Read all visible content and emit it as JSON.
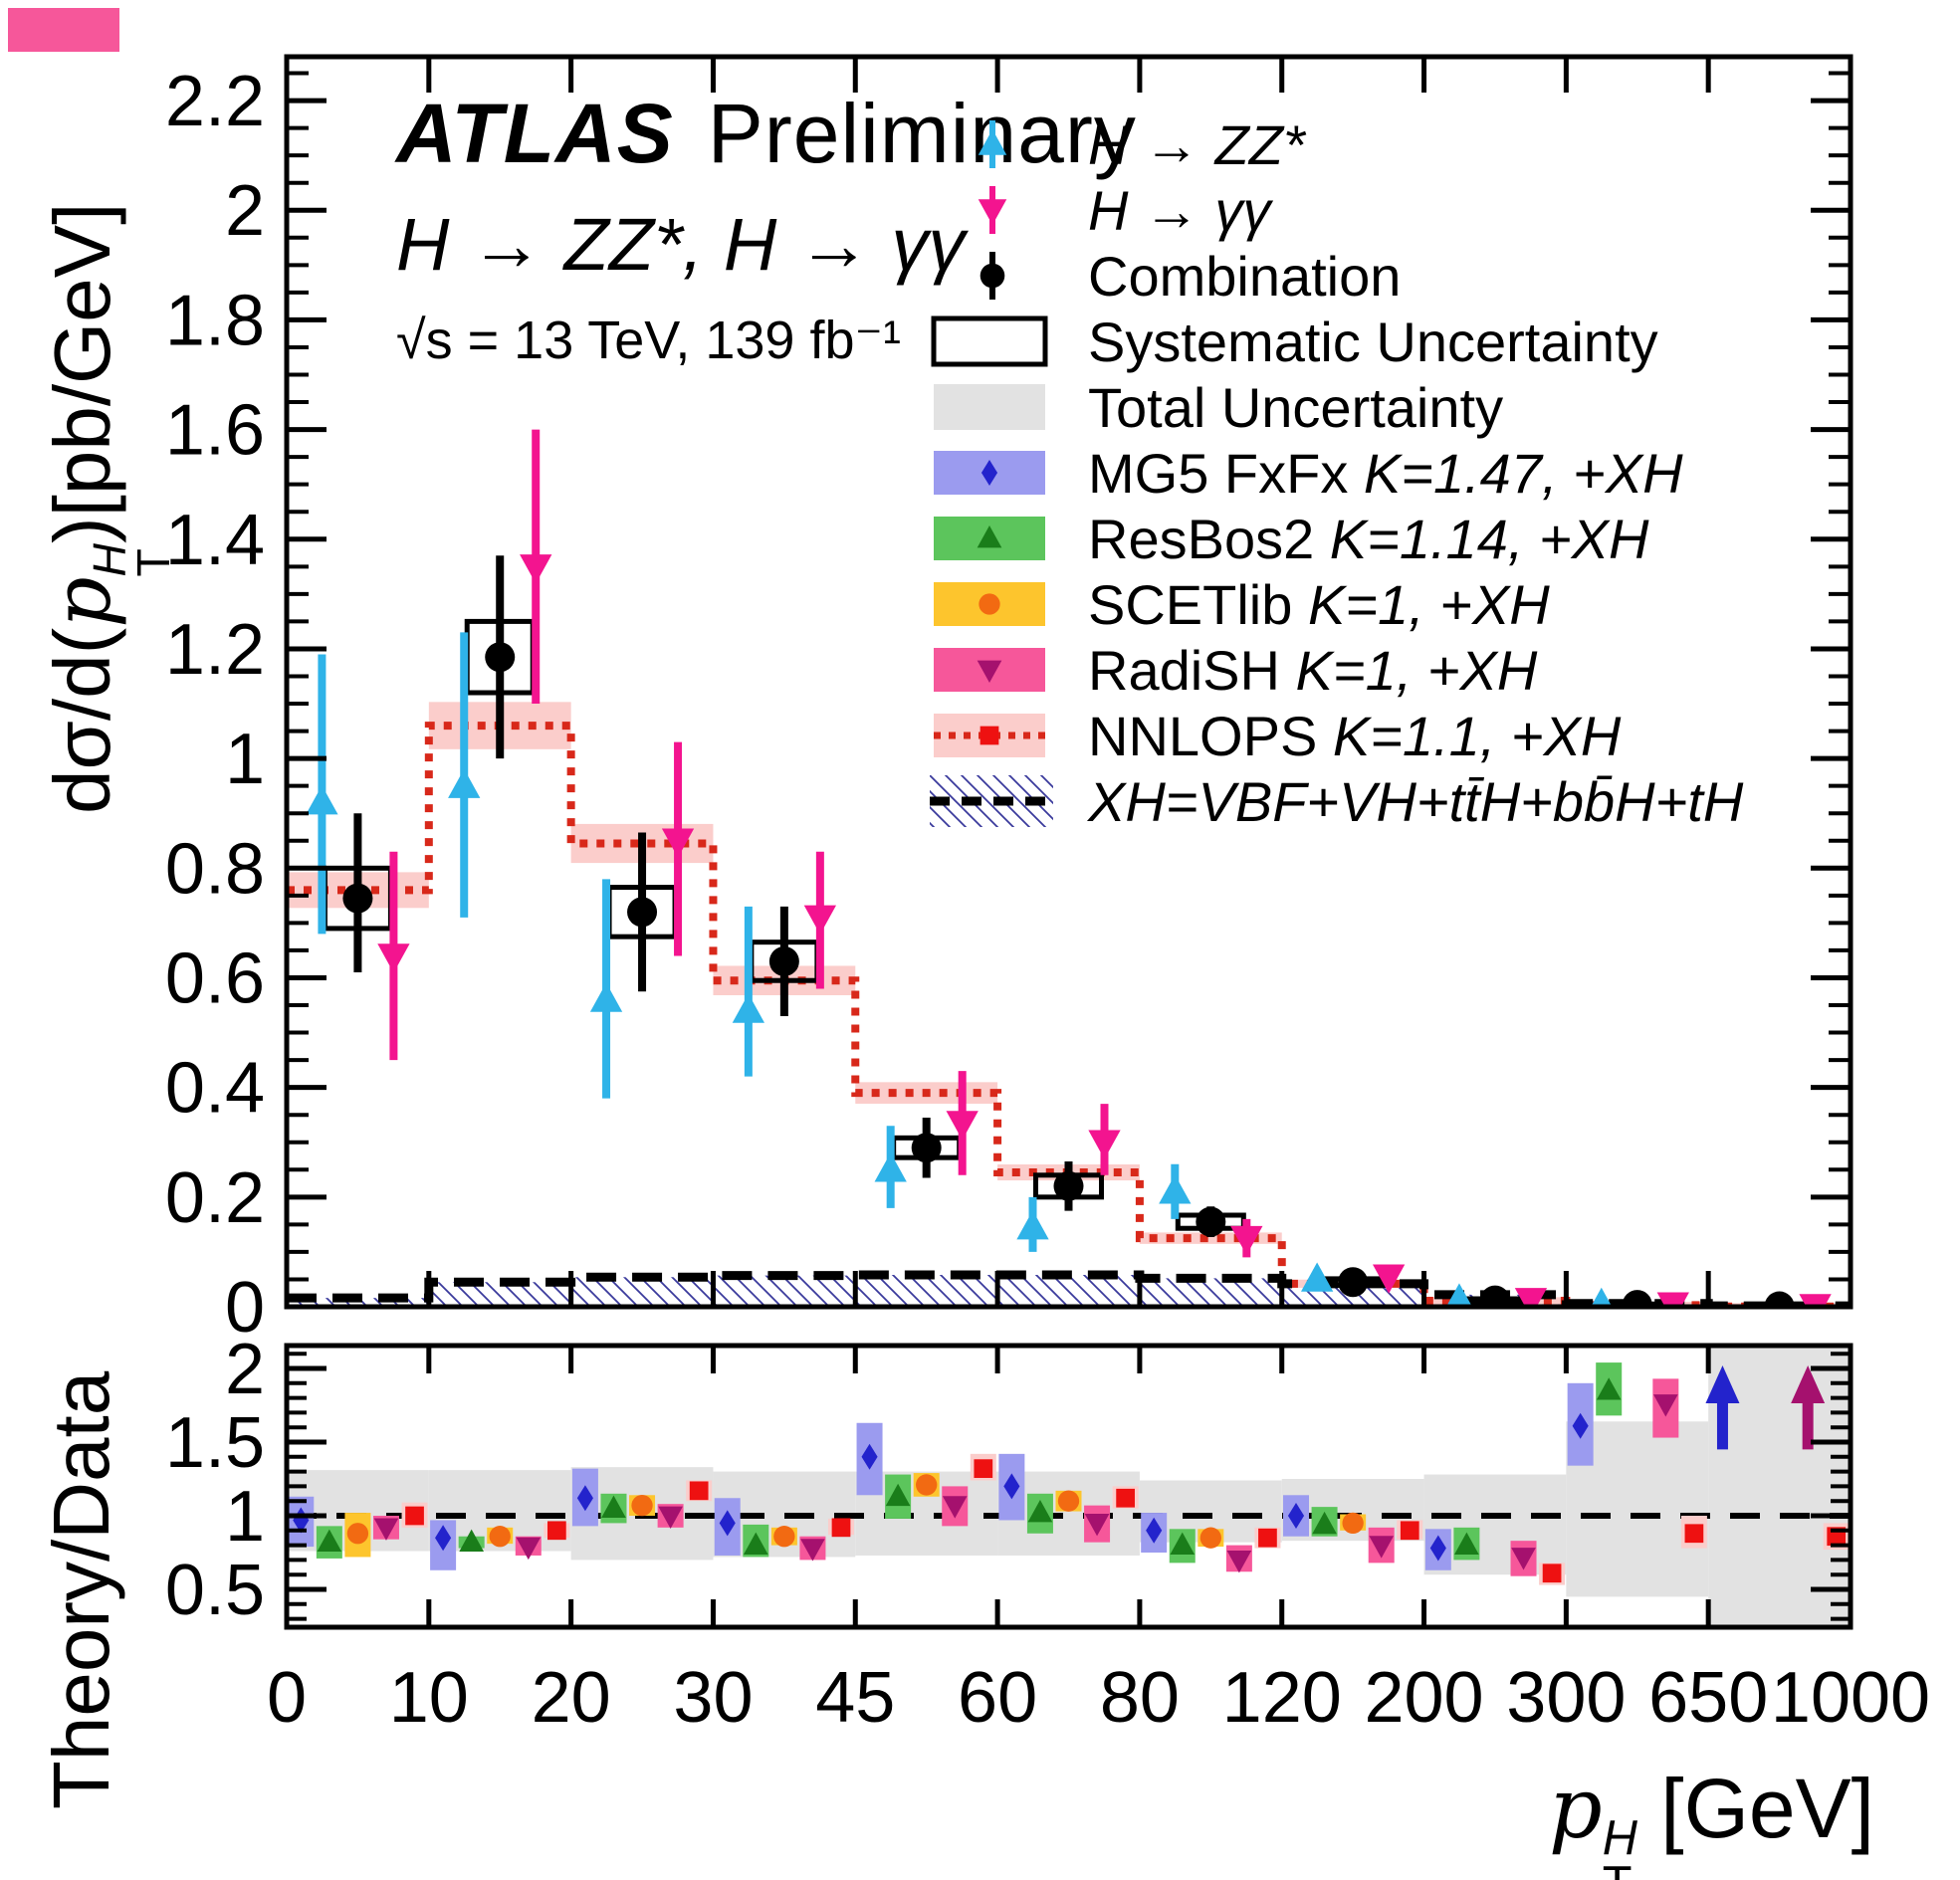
{
  "header": {
    "experiment": "ATLAS",
    "status": "Preliminary",
    "process": "H → ZZ*, H → γγ",
    "energy_lumi": "√s = 13 TeV, 139 fb⁻¹"
  },
  "axis_titles": {
    "main_y_prefix": "dσ/d(",
    "p": "p",
    "sup": "H",
    "sub": "T",
    "main_y_suffix": ")[pb/GeV]",
    "ratio_y": "Theory/Data",
    "x_suffix": " [GeV]"
  },
  "colors": {
    "h_zz": "#2FB3E8",
    "h_gg": "#F3148F",
    "combination": "#000000",
    "total_band": "#E2E2E2",
    "mg5_band": "#9B9BEF",
    "mg5_marker": "#2323CC",
    "resbos2_band": "#5CC55C",
    "resbos2_marker": "#1A7D1A",
    "scetlib_band": "#FDC52D",
    "scetlib_marker": "#F26A12",
    "radish_band": "#F6579A",
    "radish_marker": "#A5116E",
    "nnlops_band": "#FBCDCB",
    "nnlops_line": "#D8281A",
    "nnlops_marker": "#EE1111",
    "hatch_line": "#3A3A9C",
    "xh_line": "#000000"
  },
  "legend": [
    {
      "id": "h-zz",
      "type": "point",
      "marker": "triangle-up",
      "color_key": "h_zz",
      "label": "",
      "label_math": "H → ZZ*"
    },
    {
      "id": "h-gg",
      "type": "point",
      "marker": "triangle-down",
      "color_key": "h_gg",
      "label": "",
      "label_math": "H → γγ"
    },
    {
      "id": "comb",
      "type": "point",
      "marker": "circle",
      "color_key": "combination",
      "label": "Combination",
      "label_math": ""
    },
    {
      "id": "syst",
      "type": "box-open",
      "marker": "",
      "color_key": "combination",
      "label": "Systematic Uncertainty",
      "label_math": ""
    },
    {
      "id": "total",
      "type": "box-fill",
      "marker": "",
      "color_key": "total_band",
      "label": "Total Uncertainty",
      "label_math": ""
    },
    {
      "id": "mg5",
      "type": "band",
      "marker": "diamond",
      "color_key": "mg5_band",
      "marker_color_key": "mg5_marker",
      "label": "MG5 FxFx ",
      "label_math": "K=1.47, +XH"
    },
    {
      "id": "resbos2",
      "type": "band",
      "marker": "triangle-up",
      "color_key": "resbos2_band",
      "marker_color_key": "resbos2_marker",
      "label": "ResBos2 ",
      "label_math": "K=1.14, +XH"
    },
    {
      "id": "scetlib",
      "type": "band",
      "marker": "circle",
      "color_key": "scetlib_band",
      "marker_color_key": "scetlib_marker",
      "label": "SCETlib ",
      "label_math": "K=1, +XH"
    },
    {
      "id": "radish",
      "type": "band",
      "marker": "triangle-down",
      "color_key": "radish_band",
      "marker_color_key": "radish_marker",
      "label": "RadiSH ",
      "label_math": "K=1, +XH"
    },
    {
      "id": "nnlops",
      "type": "band-dotted",
      "marker": "square",
      "color_key": "nnlops_band",
      "marker_color_key": "nnlops_marker",
      "label": "NNLOPS ",
      "label_math": "K=1.1, +XH"
    },
    {
      "id": "xh",
      "type": "band-hatch",
      "marker": "",
      "color_key": "hatch_line",
      "label": "",
      "label_math": "XH=VBF+VH+tt̄H+bb̄H+tH"
    }
  ],
  "chart_data": {
    "type": "errorbar-step-with-ratio",
    "title": "ATLAS Preliminary H → ZZ*, H → γγ, √s = 13 TeV, 139 fb⁻¹",
    "xlabel": "pT^H [GeV]",
    "x_bin_edges_gev": [
      0,
      10,
      20,
      30,
      45,
      60,
      80,
      120,
      200,
      300,
      650,
      1000
    ],
    "main": {
      "ylabel": "dσ/d(pT^H) [pb/GeV]",
      "ylim": [
        0,
        2.28
      ],
      "ytick_step": 0.2,
      "ytick_labels": [
        "0",
        "0.2",
        "0.4",
        "0.6",
        "0.8",
        "1",
        "1.2",
        "1.4",
        "1.6",
        "1.8",
        "2",
        "2.2"
      ],
      "series": {
        "h_zz": {
          "label": "H → ZZ*",
          "values": [
            0.92,
            0.95,
            0.56,
            0.54,
            0.25,
            0.145,
            0.21,
            0.05,
            0.012,
            0.004,
            null
          ],
          "err_lo": [
            0.24,
            0.24,
            0.18,
            0.12,
            0.07,
            0.045,
            0.05,
            0.018,
            0.008,
            0.003,
            null
          ],
          "err_hi": [
            0.27,
            0.28,
            0.22,
            0.19,
            0.08,
            0.055,
            0.05,
            0.018,
            0.008,
            0.003,
            null
          ]
        },
        "h_gg": {
          "label": "H → γγ",
          "values": [
            0.64,
            1.35,
            0.85,
            0.71,
            0.335,
            0.3,
            0.125,
            0.055,
            0.012,
            0.004,
            0.001
          ],
          "err_lo": [
            0.19,
            0.25,
            0.21,
            0.13,
            0.095,
            0.06,
            0.035,
            0.018,
            0.007,
            0.003,
            0.001
          ],
          "err_hi": [
            0.19,
            0.25,
            0.18,
            0.12,
            0.095,
            0.07,
            0.035,
            0.018,
            0.007,
            0.003,
            0.001
          ]
        },
        "combination": {
          "label": "Combination",
          "values": [
            0.745,
            1.185,
            0.72,
            0.63,
            0.29,
            0.22,
            0.155,
            0.045,
            0.0115,
            0.0035,
            0.0008
          ],
          "stat_lo": [
            0.135,
            0.185,
            0.145,
            0.1,
            0.055,
            0.045,
            0.028,
            0.012,
            0.004,
            0.002,
            0.0008
          ],
          "stat_hi": [
            0.155,
            0.185,
            0.145,
            0.1,
            0.055,
            0.045,
            0.028,
            0.012,
            0.004,
            0.002,
            0.001
          ],
          "syst_half": [
            0.055,
            0.065,
            0.045,
            0.035,
            0.018,
            0.02,
            0.012,
            0.006,
            0.003,
            0.0015,
            0.0005
          ]
        },
        "nnlops_hist": {
          "label": "NNLOPS K=1.1, +XH",
          "values": [
            0.76,
            1.06,
            0.845,
            0.595,
            0.39,
            0.245,
            0.125,
            0.042,
            0.011,
            0.003,
            0.0005
          ]
        },
        "xh_hist": {
          "label": "XH = VBF+VH+ttH+bbH+tH",
          "values": [
            0.016,
            0.045,
            0.054,
            0.057,
            0.058,
            0.058,
            0.052,
            0.042,
            0.022,
            0.006,
            0.0015
          ]
        }
      }
    },
    "ratio": {
      "ylabel": "Theory/Data",
      "ylim": [
        0.24,
        2.16
      ],
      "yticks": [
        0.5,
        1,
        1.5,
        2
      ],
      "total_unc_lo": [
        0.76,
        0.76,
        0.7,
        0.72,
        0.73,
        0.73,
        0.82,
        0.83,
        0.6,
        0.45,
        0.24
      ],
      "total_unc_hi": [
        1.31,
        1.31,
        1.33,
        1.3,
        1.3,
        1.3,
        1.24,
        1.25,
        1.28,
        1.64,
        2.16
      ],
      "series": {
        "mg5": {
          "label": "MG5 FxFx K=1.47, +XH",
          "values": [
            0.97,
            0.85,
            1.12,
            0.95,
            1.4,
            1.2,
            0.9,
            1.0,
            0.78,
            1.61,
            null
          ],
          "band_lo": [
            0.79,
            0.63,
            0.93,
            0.73,
            1.14,
            0.97,
            0.75,
            0.86,
            0.63,
            1.34,
            null
          ],
          "band_hi": [
            1.13,
            0.97,
            1.32,
            1.12,
            1.63,
            1.42,
            1.02,
            1.14,
            0.91,
            1.9,
            null
          ]
        },
        "resbos2": {
          "label": "ResBos2 K=1.14, +XH",
          "values": [
            0.82,
            0.82,
            1.05,
            0.8,
            1.13,
            1.02,
            0.8,
            0.94,
            0.8,
            1.85,
            null
          ],
          "band_lo": [
            0.71,
            0.78,
            0.95,
            0.72,
            0.98,
            0.88,
            0.68,
            0.86,
            0.7,
            1.68,
            null
          ],
          "band_hi": [
            0.93,
            0.86,
            1.15,
            0.94,
            1.28,
            1.15,
            0.91,
            1.06,
            0.92,
            2.04,
            null
          ]
        },
        "scetlib": {
          "label": "SCETlib K=1, +XH",
          "values": [
            0.88,
            0.86,
            1.07,
            0.86,
            1.21,
            1.1,
            0.85,
            0.95,
            null,
            null,
            null
          ],
          "band_lo": [
            0.72,
            0.81,
            1.0,
            0.8,
            1.13,
            1.03,
            0.79,
            0.9,
            null,
            null,
            null
          ],
          "band_hi": [
            1.02,
            0.92,
            1.14,
            0.92,
            1.29,
            1.17,
            0.91,
            1.01,
            null,
            null,
            null
          ]
        },
        "radish": {
          "label": "RadiSH K=1, +XH",
          "values": [
            0.92,
            0.79,
            1.0,
            0.78,
            1.07,
            0.95,
            0.7,
            0.8,
            0.72,
            1.76,
            null
          ],
          "band_lo": [
            0.84,
            0.73,
            0.92,
            0.7,
            0.93,
            0.82,
            0.62,
            0.68,
            0.59,
            1.53,
            null
          ],
          "band_hi": [
            1.0,
            0.86,
            1.08,
            0.86,
            1.2,
            1.07,
            0.8,
            0.92,
            0.83,
            1.93,
            null
          ]
        },
        "nnlops": {
          "label": "NNLOPS K=1.1, +XH",
          "values": [
            1.0,
            0.9,
            1.17,
            0.92,
            1.32,
            1.12,
            0.85,
            0.9,
            0.61,
            0.88,
            0.86
          ],
          "band_lo": [
            0.92,
            0.85,
            1.1,
            0.87,
            1.24,
            1.05,
            0.78,
            0.84,
            0.53,
            0.78,
            0.77
          ],
          "band_hi": [
            1.09,
            0.95,
            1.24,
            0.98,
            1.42,
            1.2,
            0.92,
            0.97,
            0.68,
            1.0,
            0.95
          ]
        }
      },
      "offscale_arrows": [
        {
          "series": "mg5",
          "bin": 10,
          "from": 1.45,
          "to": 2.02
        },
        {
          "series": "radish",
          "bin": 10,
          "from": 1.45,
          "to": 2.02
        }
      ]
    }
  }
}
